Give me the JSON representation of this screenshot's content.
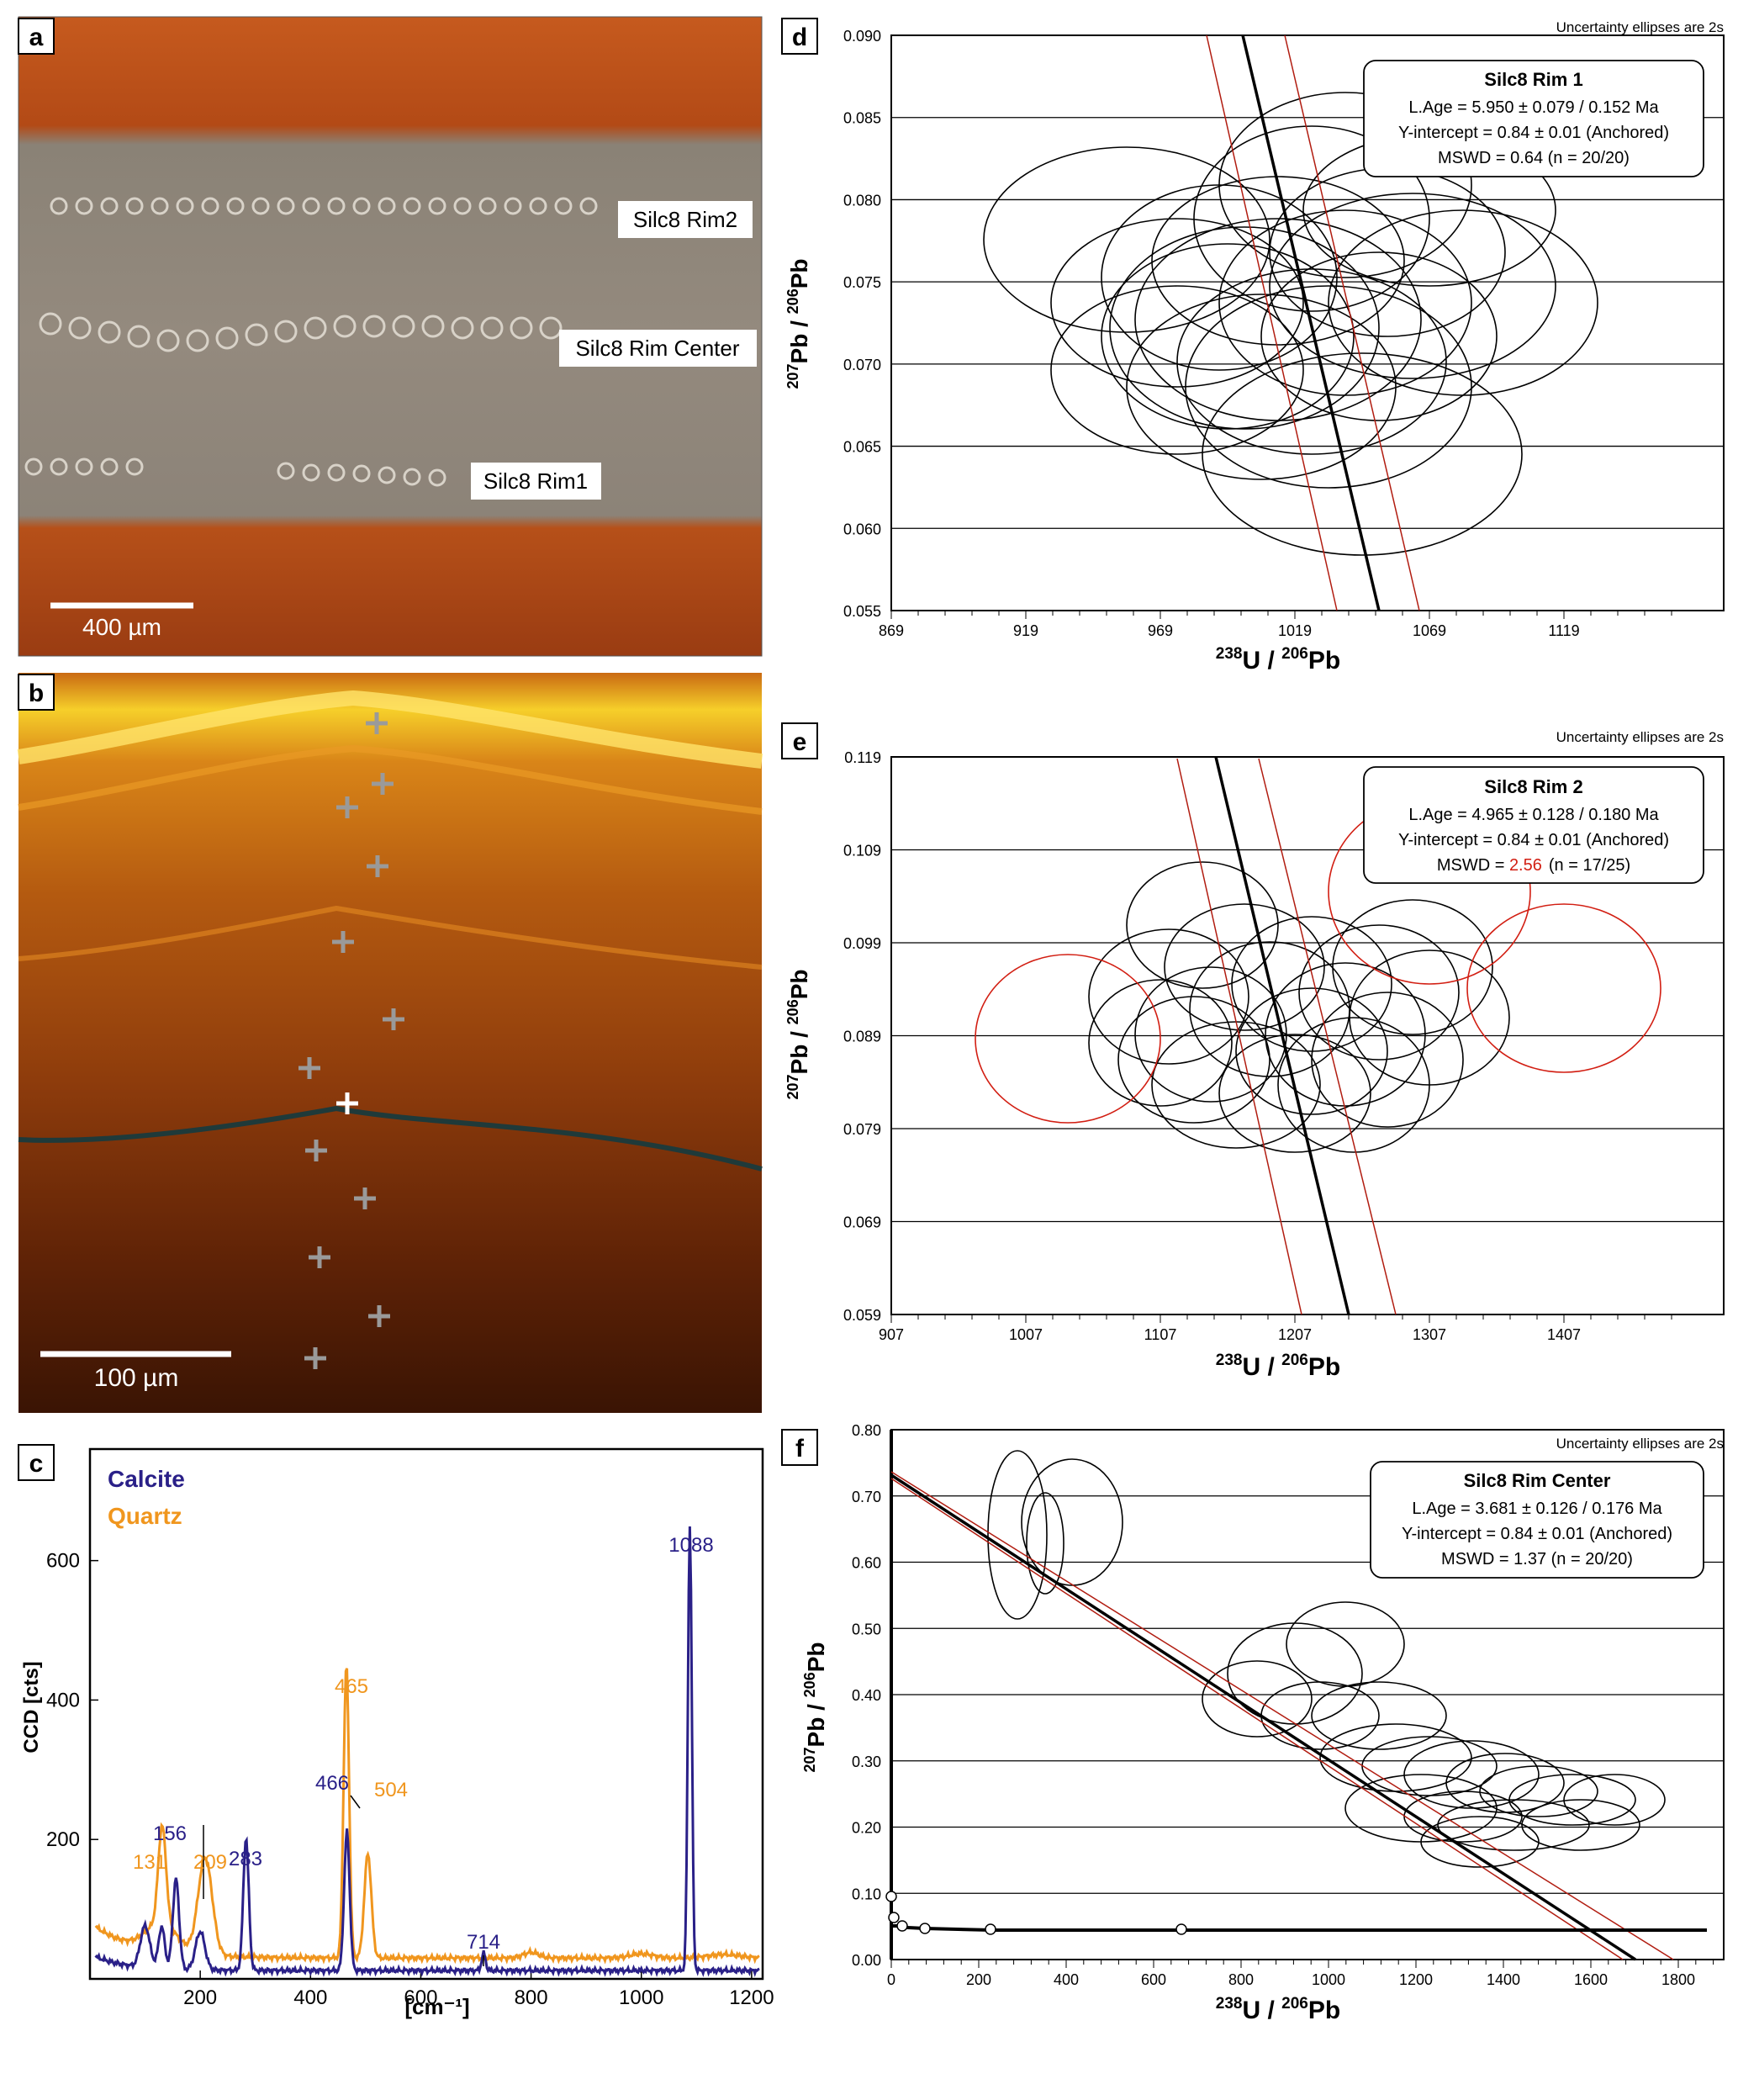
{
  "panels": {
    "a": {
      "letter": "a",
      "labels": [
        "Silc8 Rim2",
        "Silc8 Rim Center",
        "Silc8 Rim1"
      ],
      "scalebar": "400 µm"
    },
    "b": {
      "letter": "b",
      "scalebar": "100 µm"
    },
    "c": {
      "letter": "c",
      "legend": {
        "calcite": "Calcite",
        "quartz": "Quartz"
      },
      "colors": {
        "calcite": "#2a2088",
        "quartz": "#f0961e"
      },
      "ylabel": "CCD [cts]",
      "xlabel": "[cm⁻¹]",
      "xticks": [
        "200",
        "400",
        "600",
        "800",
        "1000",
        "1200"
      ],
      "yticks": [
        "200",
        "400",
        "600"
      ],
      "calcite_peak_labels": [
        "156",
        "283",
        "466",
        "714",
        "1088"
      ],
      "quartz_peak_labels": [
        "131",
        "209",
        "465",
        "504"
      ]
    },
    "d": {
      "letter": "d",
      "note": "Uncertainty ellipses are 2s",
      "box": {
        "title": "Silc8 Rim 1",
        "age": "L.Age = 5.950 ± 0.079 / 0.152 Ma",
        "yint": "Y-intercept = 0.84 ± 0.01 (Anchored)",
        "mswd": "MSWD = 0.64  (n = 20/20)"
      },
      "xticks": [
        "869",
        "919",
        "969",
        "1019",
        "1069",
        "1119"
      ],
      "yticks": [
        "0.055",
        "0.060",
        "0.065",
        "0.070",
        "0.075",
        "0.080",
        "0.085",
        "0.090"
      ]
    },
    "e": {
      "letter": "e",
      "note": "Uncertainty ellipses are 2s",
      "box": {
        "title": "Silc8 Rim 2",
        "age": "L.Age = 4.965 ± 0.128 / 0.180 Ma",
        "yint": "Y-intercept = 0.84 ± 0.01 (Anchored)",
        "mswd_label": "MSWD = ",
        "mswd_value": "2.56",
        "mswd_n": "(n = 17/25)"
      },
      "xticks": [
        "907",
        "1007",
        "1107",
        "1207",
        "1307",
        "1407"
      ],
      "yticks": [
        "0.059",
        "0.069",
        "0.079",
        "0.089",
        "0.099",
        "0.109",
        "0.119"
      ]
    },
    "f": {
      "letter": "f",
      "note": "Uncertainty ellipses are 2s",
      "box": {
        "title": "Silc8 Rim Center",
        "age": "L.Age = 3.681 ± 0.126 / 0.176 Ma",
        "yint": "Y-intercept = 0.84 ± 0.01 (Anchored)",
        "mswd": "MSWD = 1.37  (n = 20/20)"
      },
      "xticks": [
        "0",
        "200",
        "400",
        "600",
        "800",
        "1000",
        "1200",
        "1400",
        "1600",
        "1800"
      ],
      "yticks": [
        "0.00",
        "0.10",
        "0.20",
        "0.30",
        "0.40",
        "0.50",
        "0.60",
        "0.70",
        "0.80"
      ]
    }
  },
  "axis_labels": {
    "u_mass": "238",
    "u_rest": "U / ",
    "pb206_mass": "206",
    "pb_rest": "Pb",
    "pb207_mass": "207",
    "pb_slash": "Pb / "
  },
  "chart_data": [
    {
      "type": "line",
      "panel": "c",
      "xlabel": "[cm⁻¹]",
      "ylabel": "CCD [cts]",
      "xlim": [
        0,
        1220
      ],
      "ylim": [
        0,
        760
      ],
      "series": [
        {
          "name": "Calcite",
          "peaks_x": [
            156,
            283,
            466,
            714,
            1088
          ]
        },
        {
          "name": "Quartz",
          "peaks_x": [
            131,
            209,
            465,
            504
          ]
        }
      ]
    },
    {
      "type": "scatter",
      "panel": "d",
      "title": "Silc8 Rim 1",
      "xlim": [
        869,
        1169
      ],
      "ylim": [
        0.055,
        0.091
      ],
      "regression_y_intercept": 0.84
    },
    {
      "type": "scatter",
      "panel": "e",
      "title": "Silc8 Rim 2",
      "xlim": [
        907,
        1497
      ],
      "ylim": [
        0.059,
        0.119
      ],
      "regression_y_intercept": 0.84
    },
    {
      "type": "scatter",
      "panel": "f",
      "title": "Silc8 Rim Center",
      "xlim": [
        0,
        1950
      ],
      "ylim": [
        0,
        0.86
      ],
      "regression_y_intercept": 0.84
    }
  ]
}
